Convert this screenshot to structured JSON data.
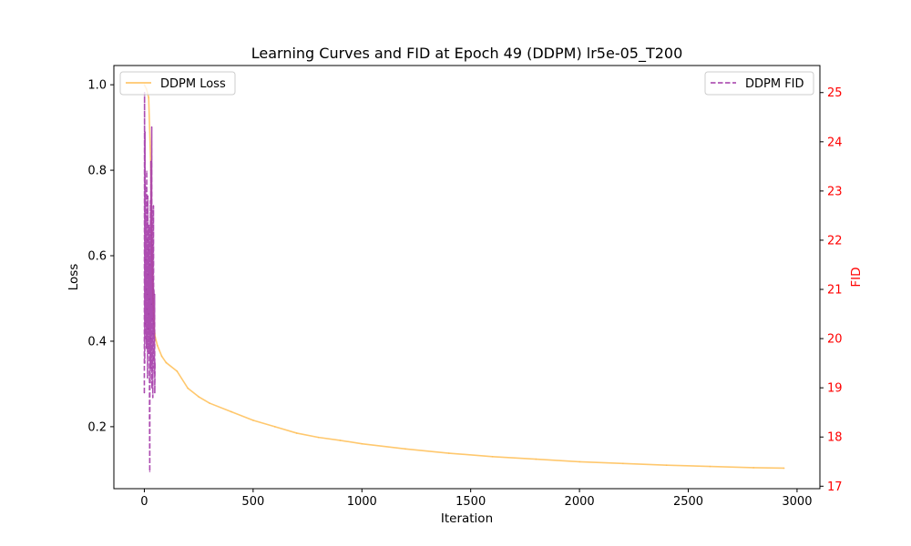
{
  "chart_data": {
    "type": "line",
    "title": "Learning Curves and FID at Epoch 49 (DDPM) lr5e-05_T200",
    "xlabel": "Iteration",
    "ylabel": "Loss",
    "y2label": "FID",
    "xlim": [
      -140,
      3105
    ],
    "ylim": [
      0.055,
      1.045
    ],
    "y2lim": [
      16.95,
      25.55
    ],
    "x_ticks": [
      0,
      500,
      1000,
      1500,
      2000,
      2500,
      3000
    ],
    "y_ticks": [
      0.2,
      0.4,
      0.6,
      0.8,
      1.0
    ],
    "y_tick_labels": [
      "0.2",
      "0.4",
      "0.6",
      "0.8",
      "1.0"
    ],
    "y2_ticks": [
      17,
      18,
      19,
      20,
      21,
      22,
      23,
      24,
      25
    ],
    "grid": false,
    "colors": {
      "loss": "#ffbe55",
      "fid": "#a43aa8",
      "right_axis": "#ff0000",
      "axis": "#000000"
    },
    "series": [
      {
        "name": "DDPM Loss",
        "axis": "left",
        "style": "solid",
        "legend_position": "upper-left",
        "x": [
          0,
          10,
          20,
          30,
          35,
          40,
          45,
          50,
          60,
          80,
          100,
          150,
          200,
          250,
          300,
          400,
          500,
          600,
          700,
          800,
          900,
          1000,
          1200,
          1400,
          1600,
          1800,
          2000,
          2200,
          2400,
          2600,
          2800,
          2940
        ],
        "y": [
          1.0,
          0.99,
          0.97,
          0.8,
          0.6,
          0.5,
          0.43,
          0.41,
          0.39,
          0.365,
          0.35,
          0.33,
          0.29,
          0.27,
          0.255,
          0.235,
          0.215,
          0.2,
          0.185,
          0.175,
          0.168,
          0.16,
          0.148,
          0.138,
          0.13,
          0.124,
          0.118,
          0.114,
          0.11,
          0.107,
          0.104,
          0.103
        ]
      },
      {
        "name": "DDPM FID",
        "axis": "right",
        "style": "dashed",
        "legend_position": "upper-right",
        "x": [
          0,
          1,
          2,
          3,
          4,
          5,
          6,
          7,
          8,
          9,
          10,
          11,
          12,
          13,
          14,
          15,
          16,
          17,
          18,
          19,
          20,
          21,
          22,
          23,
          24,
          25,
          26,
          27,
          28,
          29,
          30,
          31,
          32,
          33,
          34,
          35,
          36,
          37,
          38,
          39,
          40,
          41,
          42,
          43,
          44,
          45,
          46,
          47,
          48,
          49
        ],
        "y": [
          18.9,
          25.0,
          19.5,
          24.2,
          20.3,
          23.1,
          21.6,
          20.0,
          22.5,
          21.0,
          19.8,
          23.4,
          20.6,
          22.0,
          20.9,
          19.2,
          22.9,
          21.3,
          20.2,
          21.8,
          20.5,
          19.7,
          22.3,
          20.8,
          18.4,
          17.3,
          21.5,
          19.1,
          22.8,
          20.0,
          23.6,
          19.4,
          22.1,
          20.7,
          24.3,
          19.0,
          22.6,
          20.4,
          21.9,
          18.8,
          21.2,
          20.1,
          22.7,
          19.6,
          21.0,
          20.3,
          19.3,
          20.9,
          18.9,
          19.5
        ]
      }
    ]
  }
}
